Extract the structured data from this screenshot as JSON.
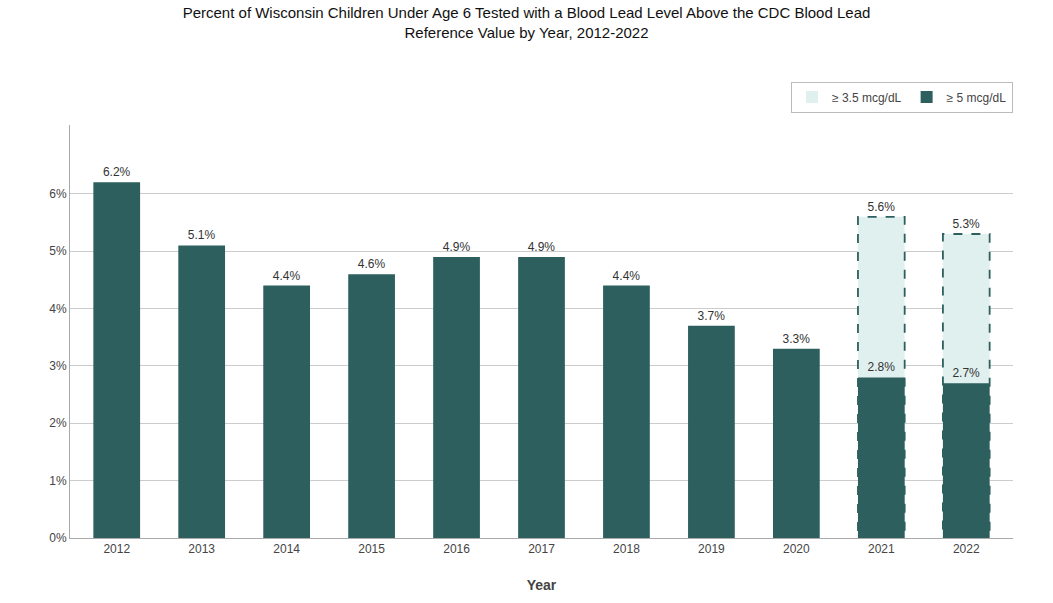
{
  "chart_data": {
    "type": "bar",
    "title": "Percent of Wisconsin Children Under Age 6 Tested with a Blood Lead Level Above the CDC Blood Lead\nReference Value by Year, 2012-2022",
    "xlabel": "Year",
    "categories": [
      "2012",
      "2013",
      "2014",
      "2015",
      "2016",
      "2017",
      "2018",
      "2019",
      "2020",
      "2021",
      "2022"
    ],
    "series": [
      {
        "name": "≥ 3.5 mcg/dL",
        "color": "#e0f0ef",
        "line_style": "dashed",
        "values": [
          null,
          null,
          null,
          null,
          null,
          null,
          null,
          null,
          null,
          0.056,
          0.053
        ],
        "value_labels": [
          null,
          null,
          null,
          null,
          null,
          null,
          null,
          null,
          null,
          "5.6%",
          "5.3%"
        ]
      },
      {
        "name": "≥ 5 mcg/dL",
        "color": "#2d5f5e",
        "values": [
          0.062,
          0.051,
          0.044,
          0.046,
          0.049,
          0.049,
          0.044,
          0.037,
          0.033,
          0.028,
          0.027
        ],
        "value_labels": [
          "6.2%",
          "5.1%",
          "4.4%",
          "4.6%",
          "4.9%",
          "4.9%",
          "4.4%",
          "3.7%",
          "3.3%",
          "2.8%",
          "2.7%"
        ]
      }
    ],
    "ylim": [
      0,
      0.072
    ],
    "yticks": [
      {
        "value": 0,
        "label": "0%"
      },
      {
        "value": 0.01,
        "label": "1%"
      },
      {
        "value": 0.02,
        "label": "2%"
      },
      {
        "value": 0.03,
        "label": "3%"
      },
      {
        "value": 0.04,
        "label": "4%"
      },
      {
        "value": 0.05,
        "label": "5%"
      },
      {
        "value": 0.06,
        "label": "6%"
      }
    ],
    "grid": true,
    "legend": "upper right",
    "data_labels": true
  }
}
